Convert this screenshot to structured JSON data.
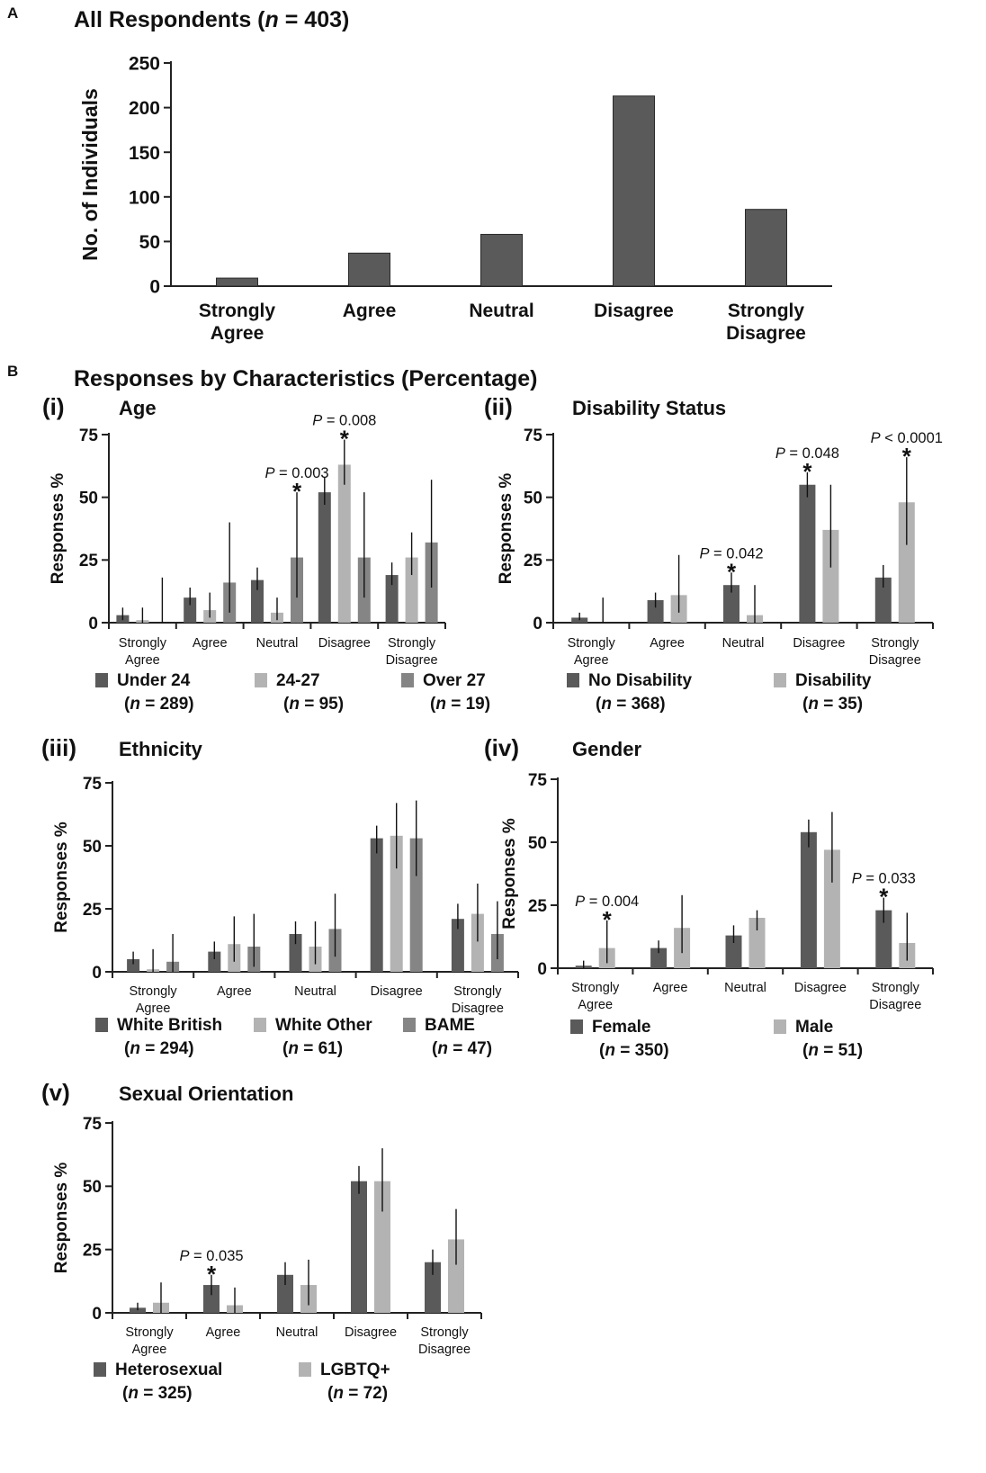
{
  "colors": {
    "dark": "#5a5a5a",
    "light": "#b3b3b3",
    "mid": "#858585",
    "axis": "#222222",
    "text": "#111111"
  },
  "panel_a": {
    "letter": "A",
    "title_main": "All Respondents (",
    "title_n": "n",
    "title_tail": " = 403)"
  },
  "panel_b": {
    "letter": "B",
    "title": "Responses by Characteristics (Percentage)"
  },
  "chart_data": [
    {
      "id": "A",
      "type": "bar",
      "title": "All Respondents (n = 403)",
      "ylabel": "No. of Individuals",
      "ylim": [
        0,
        250
      ],
      "yticks": [
        0,
        50,
        100,
        150,
        200,
        250
      ],
      "categories": [
        "Strongly Agree",
        "Agree",
        "Neutral",
        "Disagree",
        "Strongly Disagree"
      ],
      "category_lines": [
        [
          "Strongly",
          "Agree"
        ],
        [
          "Agree"
        ],
        [
          "Neutral"
        ],
        [
          "Disagree"
        ],
        [
          "Strongly",
          "Disagree"
        ]
      ],
      "series": [
        {
          "name": "All Respondents",
          "color": "dark",
          "values": [
            9,
            37,
            58,
            213,
            86
          ]
        }
      ]
    },
    {
      "id": "i",
      "panel_label": "(i)",
      "type": "bar",
      "title": "Age",
      "ylabel": "Responses %",
      "ylim": [
        0,
        75
      ],
      "yticks": [
        0,
        25,
        50,
        75
      ],
      "categories": [
        "Strongly Agree",
        "Agree",
        "Neutral",
        "Disagree",
        "Strongly Disagree"
      ],
      "category_lines": [
        [
          "Strongly",
          "Agree"
        ],
        [
          "Agree"
        ],
        [
          "Neutral"
        ],
        [
          "Disagree"
        ],
        [
          "Strongly",
          "Disagree"
        ]
      ],
      "series": [
        {
          "name": "Under 24",
          "n": "289",
          "color": "dark",
          "values": [
            3,
            10,
            17,
            52,
            19
          ],
          "err": [
            [
              1,
              6
            ],
            [
              7,
              14
            ],
            [
              13,
              22
            ],
            [
              47,
              58
            ],
            [
              15,
              24
            ]
          ]
        },
        {
          "name": "24-27",
          "n": "95",
          "color": "light",
          "values": [
            1,
            5,
            4,
            63,
            26
          ],
          "err": [
            [
              0,
              6
            ],
            [
              2,
              12
            ],
            [
              1,
              10
            ],
            [
              55,
              73
            ],
            [
              19,
              36
            ]
          ]
        },
        {
          "name": "Over 27",
          "n": "19",
          "color": "mid",
          "values": [
            0,
            16,
            26,
            26,
            32
          ],
          "err": [
            [
              0,
              18
            ],
            [
              4,
              40
            ],
            [
              10,
              52
            ],
            [
              10,
              52
            ],
            [
              14,
              57
            ]
          ]
        }
      ],
      "annotations": [
        {
          "category": 2,
          "series": 2,
          "p_label": "P",
          "p_text": " = 0.003",
          "star": "*"
        },
        {
          "category": 3,
          "series": 1,
          "p_label": "P",
          "p_text": " = 0.008",
          "star": "*"
        }
      ]
    },
    {
      "id": "ii",
      "panel_label": "(ii)",
      "type": "bar",
      "title": "Disability Status",
      "ylabel": "Responses %",
      "ylim": [
        0,
        75
      ],
      "yticks": [
        0,
        25,
        50,
        75
      ],
      "categories": [
        "Strongly Agree",
        "Agree",
        "Neutral",
        "Disagree",
        "Strongly Disagree"
      ],
      "category_lines": [
        [
          "Strongly",
          "Agree"
        ],
        [
          "Agree"
        ],
        [
          "Neutral"
        ],
        [
          "Disagree"
        ],
        [
          "Strongly",
          "Disagree"
        ]
      ],
      "series": [
        {
          "name": "No Disability",
          "n": "368",
          "color": "dark",
          "values": [
            2,
            9,
            15,
            55,
            18
          ],
          "err": [
            [
              1,
              4
            ],
            [
              6,
              12
            ],
            [
              12,
              20
            ],
            [
              50,
              60
            ],
            [
              14,
              23
            ]
          ]
        },
        {
          "name": "Disability",
          "n": "35",
          "color": "light",
          "values": [
            0,
            11,
            3,
            37,
            48
          ],
          "err": [
            [
              0,
              10
            ],
            [
              4,
              27
            ],
            [
              0,
              15
            ],
            [
              22,
              55
            ],
            [
              31,
              66
            ]
          ]
        }
      ],
      "annotations": [
        {
          "category": 2,
          "series": 0,
          "p_label": "P",
          "p_text": " = 0.042",
          "star": "*"
        },
        {
          "category": 3,
          "series": 0,
          "p_label": "P",
          "p_text": " = 0.048",
          "star": "*"
        },
        {
          "category": 4,
          "series": 1,
          "p_label": "P",
          "p_text": " < 0.0001",
          "star": "*"
        }
      ]
    },
    {
      "id": "iii",
      "panel_label": "(iii)",
      "type": "bar",
      "title": "Ethnicity",
      "ylabel": "Responses %",
      "ylim": [
        0,
        75
      ],
      "yticks": [
        0,
        25,
        50,
        75
      ],
      "categories": [
        "Strongly Agree",
        "Agree",
        "Neutral",
        "Disagree",
        "Strongly Disagree"
      ],
      "category_lines": [
        [
          "Strongly",
          "Agree"
        ],
        [
          "Agree"
        ],
        [
          "Neutral"
        ],
        [
          "Disagree"
        ],
        [
          "Strongly",
          "Disagree"
        ]
      ],
      "series": [
        {
          "name": "White British",
          "n": "294",
          "color": "dark",
          "values": [
            5,
            8,
            15,
            53,
            21
          ],
          "err": [
            [
              3,
              8
            ],
            [
              5,
              12
            ],
            [
              11,
              20
            ],
            [
              47,
              58
            ],
            [
              17,
              27
            ]
          ]
        },
        {
          "name": "White Other",
          "n": "61",
          "color": "light",
          "values": [
            1,
            11,
            10,
            54,
            23
          ],
          "err": [
            [
              0,
              9
            ],
            [
              4,
              22
            ],
            [
              3,
              20
            ],
            [
              41,
              67
            ],
            [
              12,
              35
            ]
          ]
        },
        {
          "name": "BAME",
          "n": "47",
          "color": "mid",
          "values": [
            4,
            10,
            17,
            53,
            15
          ],
          "err": [
            [
              0,
              15
            ],
            [
              2,
              23
            ],
            [
              6,
              31
            ],
            [
              38,
              68
            ],
            [
              5,
              28
            ]
          ]
        }
      ],
      "annotations": []
    },
    {
      "id": "iv",
      "panel_label": "(iv)",
      "type": "bar",
      "title": "Gender",
      "ylabel": "Responses %",
      "ylim": [
        0,
        75
      ],
      "yticks": [
        0,
        25,
        50,
        75
      ],
      "categories": [
        "Strongly Agree",
        "Agree",
        "Neutral",
        "Disagree",
        "Strongly Disagree"
      ],
      "category_lines": [
        [
          "Strongly",
          "Agree"
        ],
        [
          "Agree"
        ],
        [
          "Neutral"
        ],
        [
          "Disagree"
        ],
        [
          "Strongly",
          "Disagree"
        ]
      ],
      "series": [
        {
          "name": "Female",
          "n": "350",
          "color": "dark",
          "values": [
            1,
            8,
            13,
            54,
            23
          ],
          "err": [
            [
              0,
              3
            ],
            [
              6,
              11
            ],
            [
              10,
              17
            ],
            [
              48,
              59
            ],
            [
              18,
              28
            ]
          ]
        },
        {
          "name": "Male",
          "n": "51",
          "color": "light",
          "values": [
            8,
            16,
            20,
            47,
            10
          ],
          "err": [
            [
              2,
              19
            ],
            [
              6,
              29
            ],
            [
              15,
              23
            ],
            [
              34,
              62
            ],
            [
              3,
              22
            ]
          ]
        }
      ],
      "annotations": [
        {
          "category": 0,
          "series": 1,
          "p_label": "P",
          "p_text": " = 0.004",
          "star": "*"
        },
        {
          "category": 4,
          "series": 0,
          "p_label": "P",
          "p_text": " = 0.033",
          "star": "*"
        }
      ]
    },
    {
      "id": "v",
      "panel_label": "(v)",
      "type": "bar",
      "title": "Sexual Orientation",
      "ylabel": "Responses %",
      "ylim": [
        0,
        75
      ],
      "yticks": [
        0,
        25,
        50,
        75
      ],
      "categories": [
        "Strongly Agree",
        "Agree",
        "Neutral",
        "Disagree",
        "Strongly Disagree"
      ],
      "category_lines": [
        [
          "Strongly",
          "Agree"
        ],
        [
          "Agree"
        ],
        [
          "Neutral"
        ],
        [
          "Disagree"
        ],
        [
          "Strongly",
          "Disagree"
        ]
      ],
      "series": [
        {
          "name": "Heterosexual",
          "n": "325",
          "color": "dark",
          "values": [
            2,
            11,
            15,
            52,
            20
          ],
          "err": [
            [
              1,
              4
            ],
            [
              7,
              15
            ],
            [
              11,
              20
            ],
            [
              47,
              58
            ],
            [
              15,
              25
            ]
          ]
        },
        {
          "name": "LGBTQ+",
          "n": "72",
          "color": "light",
          "values": [
            4,
            3,
            11,
            52,
            29
          ],
          "err": [
            [
              0,
              12
            ],
            [
              0,
              10
            ],
            [
              3,
              21
            ],
            [
              40,
              65
            ],
            [
              19,
              41
            ]
          ]
        }
      ],
      "annotations": [
        {
          "category": 1,
          "series": 0,
          "p_label": "P",
          "p_text": " = 0.035",
          "star": "*"
        }
      ]
    }
  ]
}
